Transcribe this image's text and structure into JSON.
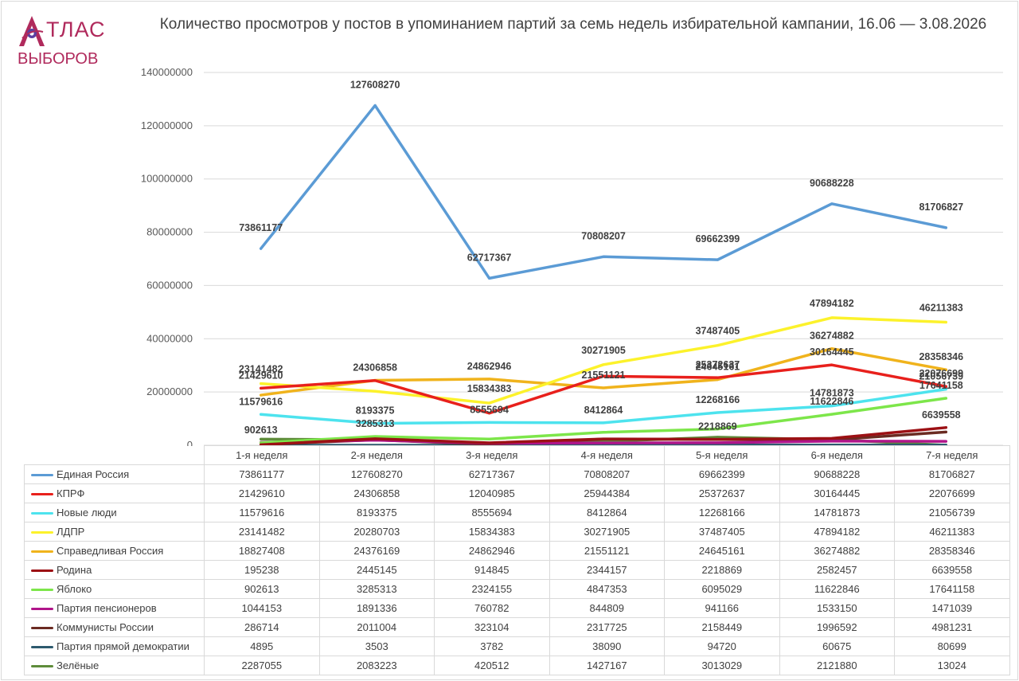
{
  "chart_data": {
    "type": "line",
    "title": "Количество просмотров у постов в упоминанием партий за семь недель избирательной кампании, 16.06 — 3.08.2026",
    "categories": [
      "1-я неделя",
      "2-я неделя",
      "3-я неделя",
      "4-я неделя",
      "5-я неделя",
      "6-я неделя",
      "7-я неделя"
    ],
    "ylim": [
      0,
      140000000
    ],
    "yticks": [
      "0",
      "20000000",
      "40000000",
      "60000000",
      "80000000",
      "100000000",
      "120000000",
      "140000000"
    ],
    "grid": true,
    "legend": "data table below chart",
    "series": [
      {
        "name": "Единая Россия",
        "color": "#5b9bd5",
        "values": [
          73861177,
          127608270,
          62717367,
          70808207,
          69662399,
          90688228,
          81706827
        ]
      },
      {
        "name": "КПРФ",
        "color": "#e8201c",
        "values": [
          21429610,
          24306858,
          12040985,
          25944384,
          25372637,
          30164445,
          22076699
        ]
      },
      {
        "name": "Новые люди",
        "color": "#4de3ee",
        "values": [
          11579616,
          8193375,
          8555694,
          8412864,
          12268166,
          14781873,
          21056739
        ]
      },
      {
        "name": "ЛДПР",
        "color": "#fcf22b",
        "values": [
          23141482,
          20280703,
          15834383,
          30271905,
          37487405,
          47894182,
          46211383
        ]
      },
      {
        "name": "Справедливая Россия",
        "color": "#f0b31c",
        "values": [
          18827408,
          24376169,
          24862946,
          21551121,
          24645161,
          36274882,
          28358346
        ]
      },
      {
        "name": "Родина",
        "color": "#9c1014",
        "values": [
          195238,
          2445145,
          914845,
          2344157,
          2218869,
          2582457,
          6639558
        ]
      },
      {
        "name": "Яблоко",
        "color": "#7de64a",
        "values": [
          902613,
          3285313,
          2324155,
          4847353,
          6095029,
          11622846,
          17641158
        ]
      },
      {
        "name": "Партия пенсионеров",
        "color": "#b0158a",
        "values": [
          1044153,
          1891336,
          760782,
          844809,
          941166,
          1533150,
          1471039
        ]
      },
      {
        "name": "Коммунисты России",
        "color": "#6b2b22",
        "values": [
          286714,
          2011004,
          323104,
          2317725,
          2158449,
          1996592,
          4981231
        ]
      },
      {
        "name": "Партия прямой демократии",
        "color": "#2d5a6e",
        "values": [
          4895,
          3503,
          3782,
          38090,
          94720,
          60675,
          80699
        ]
      },
      {
        "name": "Зелёные",
        "color": "#5e8c3a",
        "values": [
          2287055,
          2083223,
          420512,
          1427167,
          3013029,
          2121880,
          13024
        ]
      }
    ],
    "data_labels": [
      {
        "series": 0,
        "point": 0,
        "text": "73861177"
      },
      {
        "series": 0,
        "point": 1,
        "text": "127608270"
      },
      {
        "series": 0,
        "point": 2,
        "text": "62717367"
      },
      {
        "series": 0,
        "point": 3,
        "text": "70808207"
      },
      {
        "series": 0,
        "point": 4,
        "text": "69662399"
      },
      {
        "series": 0,
        "point": 5,
        "text": "90688228"
      },
      {
        "series": 0,
        "point": 6,
        "text": "81706827"
      },
      {
        "series": 1,
        "point": 0,
        "text": "21429610"
      },
      {
        "series": 1,
        "point": 1,
        "text": "24306858"
      },
      {
        "series": 1,
        "point": 4,
        "text": "25372637"
      },
      {
        "series": 1,
        "point": 5,
        "text": "30164445"
      },
      {
        "series": 1,
        "point": 6,
        "text": "22076699"
      },
      {
        "series": 2,
        "point": 0,
        "text": "11579616"
      },
      {
        "series": 2,
        "point": 1,
        "text": "8193375"
      },
      {
        "series": 2,
        "point": 2,
        "text": "8555694"
      },
      {
        "series": 2,
        "point": 3,
        "text": "8412864"
      },
      {
        "series": 2,
        "point": 4,
        "text": "12268166"
      },
      {
        "series": 2,
        "point": 5,
        "text": "14781873"
      },
      {
        "series": 2,
        "point": 6,
        "text": "21056739"
      },
      {
        "series": 3,
        "point": 0,
        "text": "23141482"
      },
      {
        "series": 3,
        "point": 2,
        "text": "15834383"
      },
      {
        "series": 3,
        "point": 3,
        "text": "30271905"
      },
      {
        "series": 3,
        "point": 4,
        "text": "37487405"
      },
      {
        "series": 3,
        "point": 5,
        "text": "47894182"
      },
      {
        "series": 3,
        "point": 6,
        "text": "46211383"
      },
      {
        "series": 4,
        "point": 2,
        "text": "24862946"
      },
      {
        "series": 4,
        "point": 3,
        "text": "21551121"
      },
      {
        "series": 4,
        "point": 4,
        "text": "24645161"
      },
      {
        "series": 4,
        "point": 5,
        "text": "36274882"
      },
      {
        "series": 4,
        "point": 6,
        "text": "28358346"
      },
      {
        "series": 5,
        "point": 4,
        "text": "2218869"
      },
      {
        "series": 5,
        "point": 6,
        "text": "6639558"
      },
      {
        "series": 6,
        "point": 0,
        "text": "902613"
      },
      {
        "series": 6,
        "point": 1,
        "text": "3285313"
      },
      {
        "series": 6,
        "point": 5,
        "text": "11622846"
      },
      {
        "series": 6,
        "point": 6,
        "text": "17641158"
      }
    ]
  },
  "logo": {
    "line1": "ТЛАС",
    "line2": "ВЫБОРОВ",
    "color": "#b02a5c"
  }
}
